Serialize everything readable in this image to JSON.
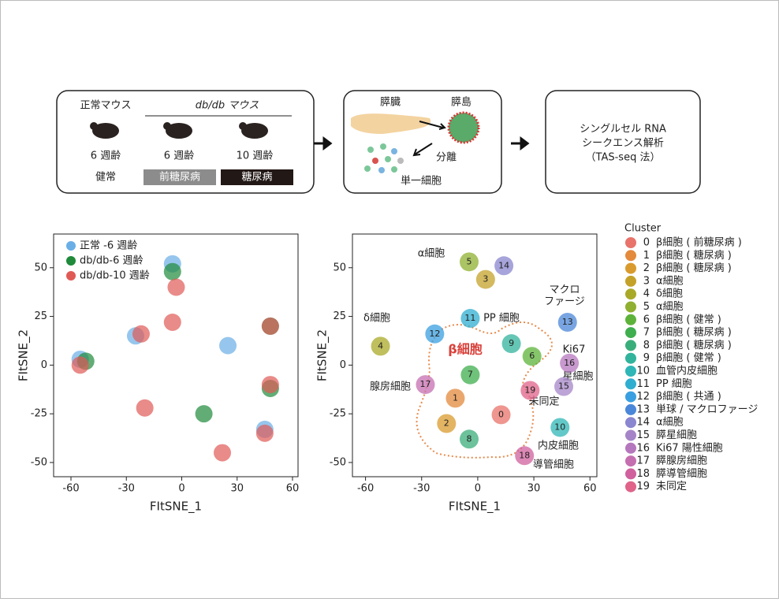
{
  "diagram": {
    "normal_mouse": "正常マウス",
    "dbdb_mouse": "db/db マウス",
    "age_1": "6 週齢",
    "age_2": "6 週齢",
    "age_3": "10 週齢",
    "state_1": "健常",
    "state_2": "前糖尿病",
    "state_3": "糖尿病",
    "pancreas": "膵臓",
    "islet": "膵島",
    "isolate": "分離",
    "single_cell": "単一細胞",
    "analysis_1": "シングルセル RNA",
    "analysis_2": "シークエンス解析",
    "analysis_3": "（TAS-seq 法）"
  },
  "chart_data": [
    {
      "type": "scatter",
      "x_label": "FItSNE_1",
      "y_label": "FItSNE_2",
      "xlim": [
        -69.4,
        63
      ],
      "ylim": [
        -57.3,
        67.3
      ],
      "xticks": [
        -60,
        -30,
        0,
        30,
        60
      ],
      "yticks": [
        -50,
        -25,
        0,
        25,
        50
      ],
      "series": [
        {
          "name": "正常 -6 週齢",
          "color": "#6aaee6",
          "x": [
            25,
            -55,
            -5,
            -25,
            45
          ],
          "y": [
            10,
            3,
            52,
            15,
            -33
          ]
        },
        {
          "name": "db/db-6 週齢",
          "color": "#1e8a3a",
          "x": [
            12,
            -52,
            -5,
            48,
            48
          ],
          "y": [
            -25,
            2,
            48,
            20,
            -12
          ]
        },
        {
          "name": "db/db-10 週齢",
          "color": "#e05a55",
          "x": [
            -20,
            -3,
            -55,
            -22,
            -5,
            48,
            48,
            45,
            22
          ],
          "y": [
            -22,
            40,
            0,
            16,
            22,
            20,
            -10,
            -35,
            -45
          ]
        }
      ]
    },
    {
      "type": "clusters",
      "x_label": "FItSNE_1",
      "y_label": "FItSNE_2",
      "legend_title": "Cluster",
      "xlim": [
        -67,
        63.7
      ],
      "ylim": [
        -57.3,
        67.3
      ],
      "xticks": [
        -60,
        -30,
        0,
        30,
        60
      ],
      "yticks": [
        -50,
        -25,
        0,
        25,
        50
      ],
      "annotations": [
        "α細胞",
        "マクロ",
        "ファージ",
        "δ細胞",
        "PP 細胞",
        "β細胞",
        "Ki67",
        "星細胞",
        "腺房細胞",
        "未同定",
        "内皮細胞",
        "導管細胞"
      ],
      "clusters": [
        {
          "id": "0",
          "name": "β細胞 ( 前糖尿病 )",
          "color": "#e8736a",
          "x": 12.5,
          "y": -25.5
        },
        {
          "id": "1",
          "name": "β細胞 ( 糖尿病 )",
          "color": "#e38a3c",
          "x": -12,
          "y": -17
        },
        {
          "id": "2",
          "name": "β細胞 ( 糖尿病 )",
          "color": "#d99b2e",
          "x": -16.7,
          "y": -30
        },
        {
          "id": "3",
          "name": "α細胞",
          "color": "#c4a22a",
          "x": 4.2,
          "y": 44
        },
        {
          "id": "4",
          "name": "δ細胞",
          "color": "#a9a928",
          "x": -52,
          "y": 9.7
        },
        {
          "id": "5",
          "name": "α細胞",
          "color": "#8fb030",
          "x": -4.6,
          "y": 53
        },
        {
          "id": "6",
          "name": "β細胞 ( 健常 )",
          "color": "#5db33a",
          "x": 29,
          "y": 4.5
        },
        {
          "id": "7",
          "name": "β細胞 ( 糖尿病 )",
          "color": "#3fae4e",
          "x": -4,
          "y": -5
        },
        {
          "id": "8",
          "name": "β細胞 ( 糖尿病 )",
          "color": "#3aae7a",
          "x": -4.6,
          "y": -38
        },
        {
          "id": "9",
          "name": "β細胞 ( 健常 )",
          "color": "#32b39c",
          "x": 18,
          "y": 11
        },
        {
          "id": "10",
          "name": "血管内皮細胞",
          "color": "#2fb6b6",
          "x": 44,
          "y": -32
        },
        {
          "id": "11",
          "name": "PP 細胞",
          "color": "#2faed0",
          "x": -4,
          "y": 24
        },
        {
          "id": "12",
          "name": "β細胞 ( 共通 )",
          "color": "#3a9fe0",
          "x": -23,
          "y": 16
        },
        {
          "id": "13",
          "name": "単球 / マクロファージ",
          "color": "#4b87d8",
          "x": 48,
          "y": 22
        },
        {
          "id": "14",
          "name": "α細胞",
          "color": "#8a86cf",
          "x": 14,
          "y": 51
        },
        {
          "id": "15",
          "name": "膵星細胞",
          "color": "#a585c8",
          "x": 46,
          "y": -11
        },
        {
          "id": "16",
          "name": "Ki67 陽性細胞",
          "color": "#b577bd",
          "x": 49,
          "y": 1
        },
        {
          "id": "17",
          "name": "膵腺房細胞",
          "color": "#c56fb0",
          "x": -28,
          "y": -10
        },
        {
          "id": "18",
          "name": "膵導管細胞",
          "color": "#d0609e",
          "x": 25,
          "y": -46.5
        },
        {
          "id": "19",
          "name": "未同定",
          "color": "#e0638a",
          "x": 28,
          "y": -13
        }
      ]
    }
  ]
}
